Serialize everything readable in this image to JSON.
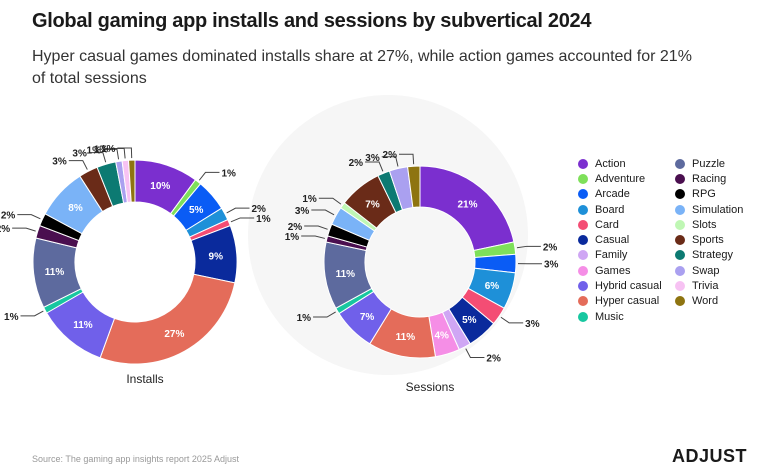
{
  "title": "Global gaming app installs and sessions by subvertical 2024",
  "subtitle": "Hyper casual games dominated installs share at 27%, while action games accounted for 21% of total sessions",
  "source": "Source: The gaming app insights report 2025 Adjust",
  "logo": "ADJUST",
  "colors": {
    "Action": "#7b2fcf",
    "Adventure": "#7ee05a",
    "Arcade": "#0a5cf5",
    "Board": "#1e90d8",
    "Card": "#f44d74",
    "Casual": "#0a2a9c",
    "Family": "#cfa6f4",
    "Games": "#f58ee6",
    "Hybrid casual": "#7060ea",
    "Hyper casual": "#e46c5a",
    "Music": "#17c7a0",
    "Puzzle": "#5d6a9e",
    "Racing": "#4a0f4f",
    "RPG": "#000000",
    "Simulation": "#7ab3f7",
    "Slots": "#bff7b4",
    "Sports": "#6a2b18",
    "Strategy": "#0c7a72",
    "Swap": "#aaa0f0",
    "Trivia": "#f7c2f3",
    "Word": "#8e7410"
  },
  "legend": [
    "Action",
    "Adventure",
    "Arcade",
    "Board",
    "Card",
    "Casual",
    "Family",
    "Games",
    "Hybrid casual",
    "Hyper casual",
    "Music",
    "Puzzle",
    "Racing",
    "RPG",
    "Simulation",
    "Slots",
    "Sports",
    "Strategy",
    "Swap",
    "Trivia",
    "Word"
  ],
  "chart_data": [
    {
      "type": "pie",
      "title": "Installs",
      "categories": [
        "Action",
        "Adventure",
        "Arcade",
        "Board",
        "Card",
        "Casual",
        "Hyper casual",
        "Hybrid casual",
        "Music",
        "Puzzle",
        "Racing",
        "RPG",
        "Simulation",
        "Sports",
        "Strategy",
        "Swap",
        "Trivia",
        "Word"
      ],
      "values": [
        10,
        1,
        5,
        2,
        1,
        9,
        27,
        11,
        1,
        11,
        2,
        2,
        8,
        3,
        3,
        1,
        1,
        1
      ],
      "unit": "%"
    },
    {
      "type": "pie",
      "title": "Sessions",
      "categories": [
        "Action",
        "Adventure",
        "Arcade",
        "Board",
        "Card",
        "Casual",
        "Family",
        "Games",
        "Hyper casual",
        "Hybrid casual",
        "Music",
        "Puzzle",
        "Racing",
        "RPG",
        "Simulation",
        "Slots",
        "Sports",
        "Strategy",
        "Swap",
        "Word"
      ],
      "values": [
        21,
        2,
        3,
        6,
        3,
        5,
        2,
        4,
        11,
        7,
        1,
        11,
        1,
        2,
        3,
        1,
        7,
        2,
        3,
        2
      ],
      "unit": "%"
    }
  ]
}
